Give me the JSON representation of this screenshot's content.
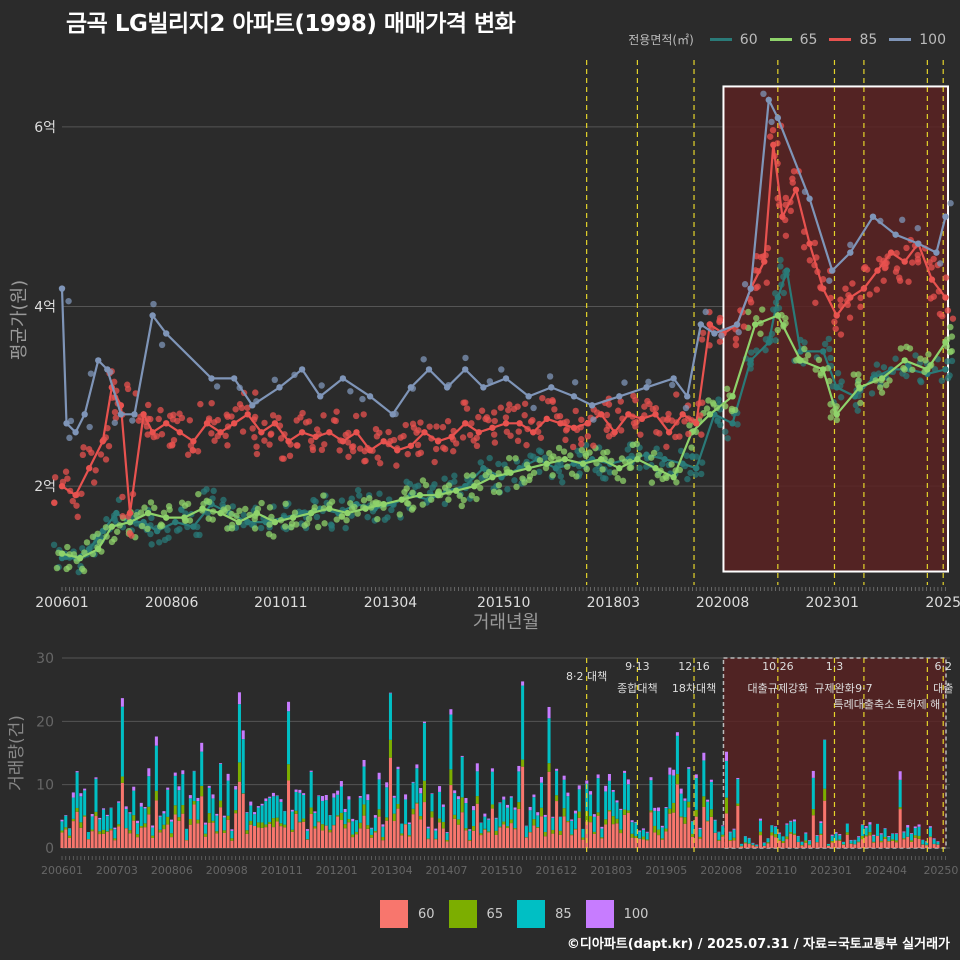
{
  "title": "금곡 LG빌리지2 아파트(1998) 매매가격 변화",
  "caption": "©디아파트(dapt.kr) / 2025.07.31 / 자료=국토교통부 실거래가",
  "colors": {
    "line60": "#2a7a78",
    "line65": "#8fd36b",
    "line85": "#e8524f",
    "line100": "#7f95b8",
    "bar60": "#f8766d",
    "bar65": "#7cae00",
    "bar85": "#00bfc4",
    "bar100": "#c77cff",
    "policy": "#e5d42a",
    "box": "#ffffff"
  },
  "chart_data": [
    {
      "type": "line",
      "title": "금곡 LG빌리지2 아파트(1998) 매매가격 변화",
      "xlabel": "거래년월",
      "ylabel": "평균가(원)",
      "legend_title": "전용면적(㎡)",
      "legend_position": "top-right",
      "x_ticks": [
        "200601",
        "200806",
        "201011",
        "201304",
        "201510",
        "201803",
        "202008",
        "202301",
        "2025"
      ],
      "y_ticks": [
        {
          "value": 2,
          "label": "2억"
        },
        {
          "value": 4,
          "label": "4억"
        },
        {
          "value": 6,
          "label": "6억"
        }
      ],
      "ylim": [
        0.9,
        6.8
      ],
      "xlim": [
        2006.0,
        2025.6
      ],
      "policy_lines": [
        2017.58,
        2018.7,
        2019.95,
        2021.8,
        2023.05,
        2023.7,
        2025.1,
        2025.45
      ],
      "highlight_range": {
        "x": [
          2020.6,
          2025.6
        ],
        "y": [
          1.05,
          6.45
        ]
      },
      "series": [
        {
          "name": "60",
          "x": [
            2006.0,
            2006.3,
            2006.6,
            2006.9,
            2007.2,
            2007.5,
            2007.8,
            2008.1,
            2008.5,
            2008.9,
            2009.3,
            2009.7,
            2010.1,
            2010.5,
            2010.9,
            2011.3,
            2011.7,
            2012.1,
            2012.5,
            2012.9,
            2013.3,
            2013.7,
            2014.1,
            2014.5,
            2014.9,
            2015.3,
            2015.7,
            2016.1,
            2016.5,
            2016.9,
            2017.3,
            2017.7,
            2018.1,
            2018.5,
            2018.9,
            2019.3,
            2019.7,
            2020.0,
            2020.4,
            2020.8,
            2021.2,
            2021.6,
            2021.8,
            2022.0,
            2022.3,
            2022.8,
            2023.1,
            2023.5,
            2023.9,
            2024.3,
            2024.7,
            2025.1,
            2025.5
          ],
          "values": [
            1.2,
            1.2,
            1.3,
            1.5,
            1.7,
            1.6,
            1.6,
            1.5,
            1.6,
            1.55,
            1.8,
            1.7,
            1.6,
            1.6,
            1.65,
            1.7,
            1.75,
            1.7,
            1.8,
            1.75,
            1.8,
            1.9,
            1.85,
            1.95,
            2.0,
            2.2,
            2.1,
            2.2,
            2.3,
            2.2,
            2.25,
            2.3,
            2.25,
            2.3,
            2.35,
            2.3,
            2.25,
            2.2,
            2.8,
            2.7,
            3.4,
            3.6,
            4.1,
            4.4,
            3.5,
            3.5,
            3.1,
            3.0,
            3.2,
            3.3,
            3.3,
            3.25,
            3.3
          ]
        },
        {
          "name": "65",
          "x": [
            2006.0,
            2006.4,
            2006.8,
            2007.1,
            2007.5,
            2007.9,
            2008.3,
            2008.7,
            2009.1,
            2009.5,
            2009.9,
            2010.3,
            2010.7,
            2011.1,
            2011.5,
            2011.9,
            2012.3,
            2012.7,
            2013.1,
            2013.5,
            2013.9,
            2014.3,
            2014.7,
            2015.1,
            2015.5,
            2015.9,
            2016.3,
            2016.7,
            2017.1,
            2017.5,
            2017.9,
            2018.3,
            2018.7,
            2019.1,
            2019.5,
            2019.9,
            2020.3,
            2020.8,
            2021.3,
            2021.8,
            2022.3,
            2022.8,
            2023.1,
            2023.6,
            2024.1,
            2024.6,
            2025.1,
            2025.5
          ],
          "values": [
            1.25,
            1.2,
            1.3,
            1.55,
            1.6,
            1.7,
            1.65,
            1.65,
            1.75,
            1.7,
            1.6,
            1.7,
            1.6,
            1.65,
            1.7,
            1.75,
            1.7,
            1.75,
            1.8,
            1.85,
            1.9,
            1.9,
            1.95,
            2.0,
            2.1,
            2.15,
            2.2,
            2.25,
            2.3,
            2.25,
            2.3,
            2.2,
            2.3,
            2.2,
            2.1,
            2.6,
            2.8,
            3.0,
            3.8,
            3.9,
            3.4,
            3.3,
            2.8,
            3.1,
            3.2,
            3.4,
            3.3,
            3.6
          ]
        },
        {
          "name": "85",
          "x": [
            2006.0,
            2006.3,
            2006.6,
            2006.9,
            2007.1,
            2007.3,
            2007.5,
            2007.8,
            2008.0,
            2008.3,
            2008.6,
            2008.9,
            2009.2,
            2009.5,
            2009.8,
            2010.1,
            2010.4,
            2010.7,
            2011.0,
            2011.3,
            2011.6,
            2011.9,
            2012.2,
            2012.5,
            2012.8,
            2013.1,
            2013.4,
            2013.7,
            2014.0,
            2014.3,
            2014.6,
            2014.9,
            2015.2,
            2015.5,
            2015.8,
            2016.1,
            2016.4,
            2016.7,
            2017.0,
            2017.3,
            2017.6,
            2017.9,
            2018.2,
            2018.5,
            2018.8,
            2019.1,
            2019.4,
            2019.7,
            2020.0,
            2020.3,
            2020.6,
            2020.9,
            2021.2,
            2021.5,
            2021.7,
            2021.9,
            2022.2,
            2022.5,
            2022.8,
            2023.1,
            2023.4,
            2023.7,
            2024.0,
            2024.3,
            2024.6,
            2024.9,
            2025.2,
            2025.5
          ],
          "values": [
            2.0,
            1.9,
            2.2,
            2.5,
            3.1,
            2.9,
            1.7,
            2.8,
            2.6,
            2.7,
            2.6,
            2.5,
            2.7,
            2.6,
            2.7,
            2.8,
            2.6,
            2.7,
            2.5,
            2.6,
            2.55,
            2.6,
            2.5,
            2.6,
            2.4,
            2.5,
            2.4,
            2.45,
            2.6,
            2.5,
            2.55,
            2.7,
            2.6,
            2.65,
            2.7,
            2.7,
            2.6,
            2.75,
            2.7,
            2.65,
            2.7,
            2.8,
            2.6,
            2.8,
            2.75,
            2.8,
            2.6,
            2.8,
            2.7,
            3.8,
            3.7,
            3.8,
            4.2,
            4.5,
            5.8,
            5.0,
            5.3,
            4.7,
            4.2,
            3.9,
            4.1,
            4.2,
            4.4,
            4.6,
            4.5,
            4.7,
            4.3,
            4.1
          ]
        },
        {
          "name": "100",
          "x": [
            2006.0,
            2006.1,
            2006.3,
            2006.5,
            2006.8,
            2007.0,
            2007.3,
            2007.6,
            2008.0,
            2008.3,
            2009.3,
            2009.8,
            2010.2,
            2010.8,
            2011.3,
            2011.7,
            2012.2,
            2012.8,
            2013.3,
            2013.7,
            2014.1,
            2014.5,
            2014.9,
            2015.3,
            2015.8,
            2016.3,
            2016.8,
            2017.3,
            2017.7,
            2018.3,
            2018.9,
            2019.5,
            2019.8,
            2020.1,
            2020.4,
            2020.9,
            2021.2,
            2021.6,
            2021.8,
            2022.5,
            2023.0,
            2023.4,
            2023.9,
            2024.4,
            2024.9,
            2025.3,
            2025.5
          ],
          "values": [
            4.2,
            2.7,
            2.6,
            2.8,
            3.4,
            3.3,
            2.8,
            2.8,
            3.9,
            3.7,
            3.2,
            3.2,
            2.9,
            3.1,
            3.3,
            3.0,
            3.2,
            3.0,
            2.8,
            3.1,
            3.3,
            3.1,
            3.3,
            3.1,
            3.2,
            3.0,
            3.1,
            3.0,
            2.9,
            3.0,
            3.1,
            3.2,
            3.0,
            3.8,
            3.7,
            3.8,
            4.2,
            6.3,
            6.1,
            5.2,
            4.4,
            4.6,
            5.0,
            4.8,
            4.7,
            4.6,
            5.0
          ]
        }
      ]
    },
    {
      "type": "bar",
      "ylabel": "거래량(건)",
      "ylim": [
        0,
        30
      ],
      "y_ticks": [
        0,
        10,
        20,
        30
      ],
      "x_ticks": [
        "200601",
        "200703",
        "200806",
        "200908",
        "201011",
        "201201",
        "201304",
        "201407",
        "201510",
        "201612",
        "201803",
        "201905",
        "202008",
        "202110",
        "202301",
        "202404",
        "20250"
      ],
      "legend_position": "bottom",
      "series_names": [
        "60",
        "65",
        "85",
        "100"
      ],
      "annotations": [
        {
          "x": 2017.58,
          "label": "8·2 대책",
          "row": 1
        },
        {
          "x": 2018.7,
          "label": "9·13",
          "row": 0
        },
        {
          "x": 2018.7,
          "label": "종합대책",
          "row": 2
        },
        {
          "x": 2019.95,
          "label": "12·16",
          "row": 0
        },
        {
          "x": 2019.95,
          "label": "18차대책",
          "row": 2
        },
        {
          "x": 2021.8,
          "label": "10.26",
          "row": 0
        },
        {
          "x": 2021.8,
          "label": "대출규제강화",
          "row": 2
        },
        {
          "x": 2023.05,
          "label": "1·3",
          "row": 0
        },
        {
          "x": 2023.05,
          "label": "규제완화",
          "row": 2
        },
        {
          "x": 2023.7,
          "label": "9·7",
          "row": 2
        },
        {
          "x": 2023.7,
          "label": "특례대출축소",
          "row": 3
        },
        {
          "x": 2024.9,
          "label": "토허제 해",
          "row": 3
        },
        {
          "x": 2025.45,
          "label": "6·2",
          "row": 0
        },
        {
          "x": 2025.45,
          "label": "대출",
          "row": 2
        }
      ]
    }
  ]
}
